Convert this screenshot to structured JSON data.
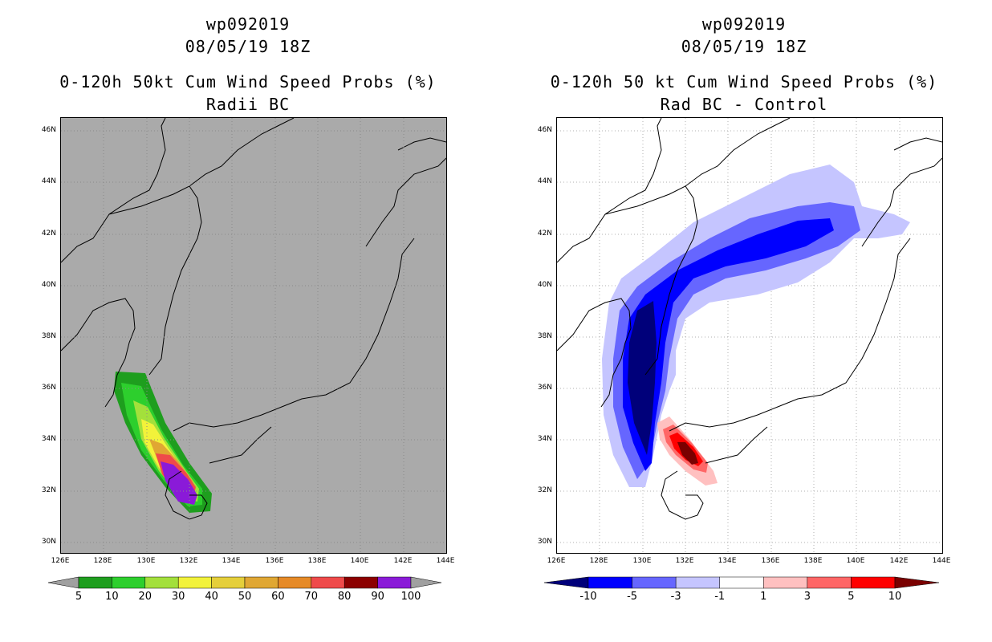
{
  "left": {
    "storm_id": "wp092019",
    "datetime": "08/05/19 18Z",
    "title": "0-120h 50kt Cum Wind Speed Probs (%)",
    "subtitle": "Radii BC",
    "colorbar": {
      "labels": [
        "5",
        "10",
        "20",
        "30",
        "40",
        "50",
        "60",
        "70",
        "80",
        "90",
        "100"
      ],
      "colors": [
        "#1e9e1e",
        "#2dcf2d",
        "#a3e03b",
        "#f2f23a",
        "#e5cf3a",
        "#e0a733",
        "#e68a27",
        "#ef4a4a",
        "#8c0000",
        "#8a1ad8"
      ]
    }
  },
  "right": {
    "storm_id": "wp092019",
    "datetime": "08/05/19 18Z",
    "title": "0-120h 50 kt Cum Wind Speed Probs (%)",
    "subtitle": "Rad BC - Control",
    "colorbar": {
      "labels": [
        "-10",
        "-5",
        "-3",
        "-1",
        "1",
        "3",
        "5",
        "10"
      ],
      "colors": [
        "#00007a",
        "#0000ff",
        "#6666ff",
        "#c5c5ff",
        "#ffffff",
        "#ffc0c0",
        "#ff6666",
        "#ff0000",
        "#7a0000"
      ]
    }
  },
  "axes": {
    "lat_labels": [
      "46N",
      "44N",
      "42N",
      "40N",
      "38N",
      "36N",
      "34N",
      "32N",
      "30N"
    ],
    "lon_labels": [
      "126E",
      "128E",
      "130E",
      "132E",
      "134E",
      "136E",
      "138E",
      "140E",
      "142E",
      "144E"
    ]
  },
  "colors": {
    "land_gray": "#aaaaaa",
    "grid": "#b0b0b0"
  }
}
